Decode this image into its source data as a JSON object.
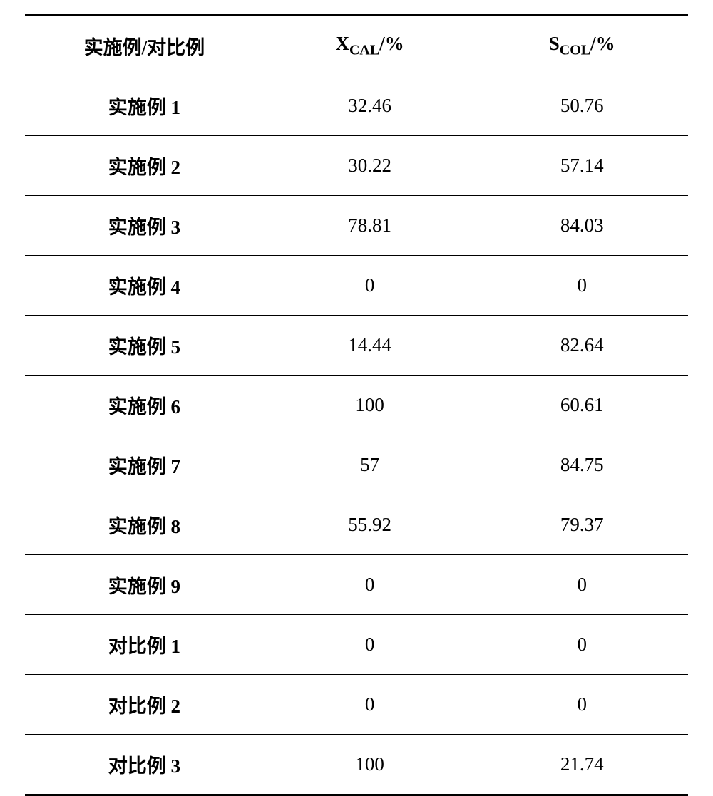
{
  "table": {
    "type": "table",
    "columns": [
      {
        "label": "实施例/对比例",
        "width": "36%"
      },
      {
        "label_prefix": "X",
        "label_sub": "CAL",
        "label_suffix": "/%",
        "width": "32%"
      },
      {
        "label_prefix": "S",
        "label_sub": "COL",
        "label_suffix": "/%",
        "width": "32%"
      }
    ],
    "rows": [
      {
        "label": "实施例 1",
        "xcal": "32.46",
        "scol": "50.76"
      },
      {
        "label": "实施例 2",
        "xcal": "30.22",
        "scol": "57.14"
      },
      {
        "label": "实施例 3",
        "xcal": "78.81",
        "scol": "84.03"
      },
      {
        "label": "实施例 4",
        "xcal": "0",
        "scol": "0"
      },
      {
        "label": "实施例 5",
        "xcal": "14.44",
        "scol": "82.64"
      },
      {
        "label": "实施例 6",
        "xcal": "100",
        "scol": "60.61"
      },
      {
        "label": "实施例 7",
        "xcal": "57",
        "scol": "84.75"
      },
      {
        "label": "实施例 8",
        "xcal": "55.92",
        "scol": "79.37"
      },
      {
        "label": "实施例 9",
        "xcal": "0",
        "scol": "0"
      },
      {
        "label": "对比例 1",
        "xcal": "0",
        "scol": "0"
      },
      {
        "label": "对比例 2",
        "xcal": "0",
        "scol": "0"
      },
      {
        "label": "对比例 3",
        "xcal": "100",
        "scol": "21.74"
      }
    ],
    "styling": {
      "background_color": "#ffffff",
      "text_color": "#000000",
      "border_color": "#000000",
      "border_top_width": 3,
      "border_bottom_width": 3,
      "row_border_width": 1.5,
      "header_fontsize": 27,
      "header_sub_fontsize": 20,
      "cell_fontsize": 27,
      "label_font_weight": "bold",
      "value_font_weight": "normal",
      "cell_padding_vertical": 22,
      "cell_padding_horizontal": 8,
      "font_family_label": "SimSun",
      "font_family_value": "Times New Roman",
      "text_align": "center"
    }
  }
}
